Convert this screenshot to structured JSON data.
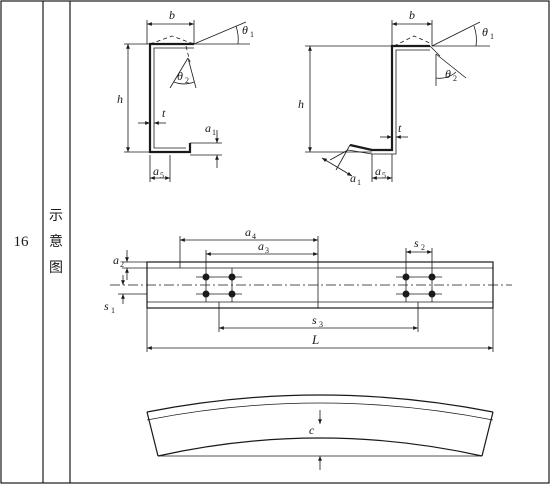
{
  "row_number": "16",
  "row_label": [
    "示",
    "意",
    "图"
  ],
  "labels": {
    "b": "b",
    "theta1": "θ",
    "theta2": "θ",
    "theta_sub1": "1",
    "theta_sub2": "2",
    "h": "h",
    "t": "t",
    "a1": "a",
    "a1_sub": "1",
    "a5": "a",
    "a5_sub": "5",
    "a2": "a",
    "a2_sub": "2",
    "a3": "a",
    "a3_sub": "3",
    "a4": "a",
    "a4_sub": "4",
    "s1": "s",
    "s1_sub": "1",
    "s2": "s",
    "s2_sub": "2",
    "s3": "s",
    "s3_sub": "3",
    "L": "L",
    "c": "c"
  },
  "colors": {
    "ink": "#1a1a1a",
    "background": "#ffffff"
  }
}
